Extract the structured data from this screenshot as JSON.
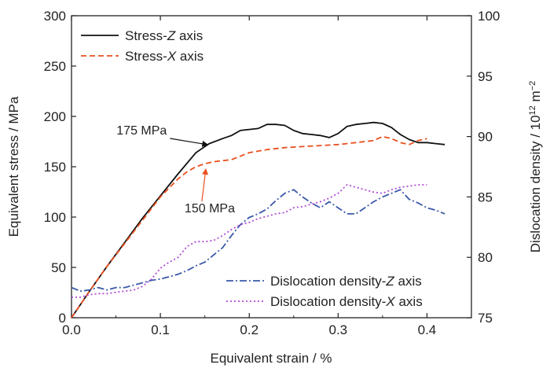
{
  "chart_data": {
    "type": "line",
    "x": {
      "label": "Equivalent strain / %",
      "range": [
        0.0,
        0.45
      ],
      "ticks": [
        0.0,
        0.1,
        0.2,
        0.3,
        0.4
      ],
      "tick_labels": [
        "0.0",
        "0.1",
        "0.2",
        "0.3",
        "0.4"
      ]
    },
    "y_left": {
      "label": "Equivalent stress / MPa",
      "range": [
        0,
        300
      ],
      "ticks": [
        0,
        50,
        100,
        150,
        200,
        250,
        300
      ],
      "tick_labels": [
        "0",
        "50",
        "100",
        "150",
        "200",
        "250",
        "300"
      ]
    },
    "y_right": {
      "label_main": "Dislocation density / 10",
      "label_exponent": "12",
      "label_unit": " m",
      "label_unit_exponent": "−2",
      "range": [
        75,
        100
      ],
      "ticks": [
        75,
        80,
        85,
        90,
        95,
        100
      ],
      "tick_labels": [
        "75",
        "80",
        "85",
        "90",
        "95",
        "100"
      ]
    },
    "series": [
      {
        "name_prefix": "Stress-",
        "name_axis": "Z",
        "name_suffix": " axis",
        "axis": "left",
        "color": "#111111",
        "dash": "none",
        "points": [
          [
            0.0,
            0
          ],
          [
            0.02,
            26
          ],
          [
            0.04,
            51
          ],
          [
            0.06,
            75
          ],
          [
            0.08,
            99
          ],
          [
            0.1,
            121
          ],
          [
            0.12,
            143
          ],
          [
            0.14,
            164
          ],
          [
            0.155,
            173
          ],
          [
            0.17,
            178
          ],
          [
            0.18,
            181
          ],
          [
            0.19,
            186
          ],
          [
            0.2,
            187
          ],
          [
            0.21,
            188
          ],
          [
            0.22,
            192
          ],
          [
            0.23,
            192
          ],
          [
            0.24,
            191
          ],
          [
            0.25,
            186
          ],
          [
            0.26,
            183
          ],
          [
            0.27,
            182
          ],
          [
            0.28,
            181
          ],
          [
            0.29,
            179
          ],
          [
            0.3,
            183
          ],
          [
            0.31,
            190
          ],
          [
            0.32,
            192
          ],
          [
            0.33,
            193
          ],
          [
            0.34,
            194
          ],
          [
            0.35,
            193
          ],
          [
            0.36,
            189
          ],
          [
            0.37,
            182
          ],
          [
            0.38,
            177
          ],
          [
            0.39,
            174
          ],
          [
            0.4,
            174
          ],
          [
            0.41,
            173
          ],
          [
            0.42,
            172
          ]
        ]
      },
      {
        "name_prefix": "Stress-",
        "name_axis": "X",
        "name_suffix": " axis",
        "axis": "left",
        "color": "#e8501e",
        "dash": "7,4",
        "points": [
          [
            0.0,
            0
          ],
          [
            0.02,
            26
          ],
          [
            0.04,
            51
          ],
          [
            0.06,
            74
          ],
          [
            0.08,
            97
          ],
          [
            0.1,
            120
          ],
          [
            0.12,
            138
          ],
          [
            0.13,
            145
          ],
          [
            0.14,
            150
          ],
          [
            0.15,
            153
          ],
          [
            0.16,
            155
          ],
          [
            0.18,
            157
          ],
          [
            0.2,
            164
          ],
          [
            0.22,
            167
          ],
          [
            0.24,
            169
          ],
          [
            0.26,
            170
          ],
          [
            0.28,
            171
          ],
          [
            0.3,
            172
          ],
          [
            0.32,
            174
          ],
          [
            0.34,
            176
          ],
          [
            0.35,
            180
          ],
          [
            0.36,
            178
          ],
          [
            0.37,
            174
          ],
          [
            0.38,
            172
          ],
          [
            0.39,
            176
          ],
          [
            0.4,
            178
          ]
        ]
      },
      {
        "name_prefix": "Dislocation density-",
        "name_axis": "Z",
        "name_suffix": " axis",
        "axis": "right",
        "color": "#3b59a8",
        "dash": "9,3,2,3",
        "points": [
          [
            0.0,
            77.5
          ],
          [
            0.01,
            77.2
          ],
          [
            0.02,
            77.3
          ],
          [
            0.03,
            77.5
          ],
          [
            0.04,
            77.3
          ],
          [
            0.05,
            77.5
          ],
          [
            0.06,
            77.5
          ],
          [
            0.07,
            77.7
          ],
          [
            0.08,
            77.9
          ],
          [
            0.09,
            78.1
          ],
          [
            0.1,
            78.2
          ],
          [
            0.11,
            78.4
          ],
          [
            0.12,
            78.6
          ],
          [
            0.13,
            78.9
          ],
          [
            0.14,
            79.3
          ],
          [
            0.15,
            79.6
          ],
          [
            0.16,
            80.2
          ],
          [
            0.17,
            80.8
          ],
          [
            0.18,
            81.8
          ],
          [
            0.19,
            82.7
          ],
          [
            0.2,
            83.3
          ],
          [
            0.21,
            83.6
          ],
          [
            0.22,
            84.0
          ],
          [
            0.23,
            84.7
          ],
          [
            0.24,
            85.3
          ],
          [
            0.25,
            85.6
          ],
          [
            0.26,
            85.0
          ],
          [
            0.27,
            84.5
          ],
          [
            0.28,
            84.1
          ],
          [
            0.29,
            84.6
          ],
          [
            0.3,
            84.1
          ],
          [
            0.31,
            83.6
          ],
          [
            0.32,
            83.6
          ],
          [
            0.33,
            84.1
          ],
          [
            0.34,
            84.6
          ],
          [
            0.35,
            85.0
          ],
          [
            0.36,
            85.3
          ],
          [
            0.37,
            85.6
          ],
          [
            0.38,
            84.8
          ],
          [
            0.39,
            84.5
          ],
          [
            0.4,
            84.1
          ],
          [
            0.41,
            83.9
          ],
          [
            0.42,
            83.6
          ]
        ]
      },
      {
        "name_prefix": "Dislocation density-",
        "name_axis": "X",
        "name_suffix": " axis",
        "axis": "right",
        "color": "#b04ad6",
        "dash": "2,3",
        "points": [
          [
            0.0,
            76.7
          ],
          [
            0.01,
            76.7
          ],
          [
            0.02,
            76.9
          ],
          [
            0.03,
            77.0
          ],
          [
            0.04,
            77.0
          ],
          [
            0.05,
            77.1
          ],
          [
            0.06,
            77.2
          ],
          [
            0.07,
            77.3
          ],
          [
            0.08,
            77.6
          ],
          [
            0.09,
            78.2
          ],
          [
            0.1,
            79.1
          ],
          [
            0.11,
            79.6
          ],
          [
            0.12,
            80.0
          ],
          [
            0.13,
            80.9
          ],
          [
            0.14,
            81.3
          ],
          [
            0.15,
            81.3
          ],
          [
            0.16,
            81.4
          ],
          [
            0.17,
            81.8
          ],
          [
            0.18,
            82.3
          ],
          [
            0.19,
            82.7
          ],
          [
            0.2,
            82.9
          ],
          [
            0.21,
            83.2
          ],
          [
            0.22,
            83.4
          ],
          [
            0.23,
            83.6
          ],
          [
            0.24,
            83.7
          ],
          [
            0.25,
            84.1
          ],
          [
            0.26,
            84.2
          ],
          [
            0.27,
            84.4
          ],
          [
            0.28,
            84.6
          ],
          [
            0.29,
            84.9
          ],
          [
            0.3,
            85.3
          ],
          [
            0.31,
            86.0
          ],
          [
            0.32,
            85.8
          ],
          [
            0.33,
            85.6
          ],
          [
            0.34,
            85.4
          ],
          [
            0.35,
            85.3
          ],
          [
            0.36,
            85.6
          ],
          [
            0.37,
            85.8
          ],
          [
            0.38,
            85.9
          ],
          [
            0.39,
            86.0
          ],
          [
            0.4,
            86.0
          ]
        ]
      }
    ],
    "legends": {
      "upper_left": [
        0,
        1
      ],
      "lower_right": [
        2,
        3
      ]
    },
    "annotations": [
      {
        "text": "175 MPa",
        "target": [
          0.155,
          175
        ],
        "arrow_color": "#111111"
      },
      {
        "text": "150 MPa",
        "target": [
          0.152,
          150
        ],
        "arrow_color": "#e8501e"
      }
    ]
  }
}
